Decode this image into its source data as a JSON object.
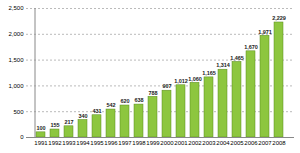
{
  "chart_data": {
    "type": "bar",
    "categories": [
      "1991",
      "1992",
      "1993",
      "1994",
      "1995",
      "1996",
      "1997",
      "1998",
      "1999",
      "2000",
      "2001",
      "2002",
      "2003",
      "2004",
      "2005",
      "2006",
      "2007",
      "2008"
    ],
    "values": [
      100,
      155,
      217,
      340,
      431,
      542,
      620,
      638,
      788,
      907,
      1012,
      1060,
      1165,
      1314,
      1465,
      1670,
      1971,
      2229
    ],
    "value_labels": [
      "100",
      "155",
      "217",
      "340",
      "431",
      "542",
      "620",
      "638",
      "788",
      "907",
      "1,012",
      "1,060",
      "1,165",
      "1,314",
      "1,465",
      "1,670",
      "1,971",
      "2,229"
    ],
    "color": "#8dc63f",
    "ylim": [
      0,
      2500
    ],
    "yticks": [
      0,
      500,
      {
        "value": 1000,
        "label": "1,000"
      },
      {
        "value": 1500,
        "label": "1,500"
      },
      {
        "value": 2000,
        "label": "2,000"
      },
      {
        "value": 2500,
        "label": "2,500"
      }
    ],
    "grid": true,
    "data_labels": true
  }
}
